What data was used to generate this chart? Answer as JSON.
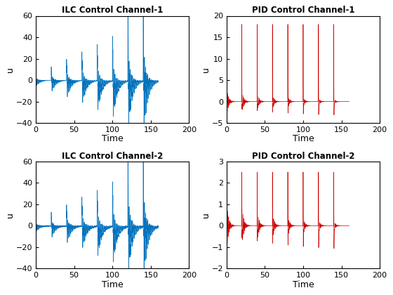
{
  "titles": [
    "ILC Control Channel-1",
    "PID Control Channel-1",
    "ILC Control Channel-2",
    "PID Control Channel-2"
  ],
  "xlabel": "Time",
  "ylabel": "u",
  "ilc_ylim": [
    -40,
    60
  ],
  "pid1_ylim": [
    -5,
    20
  ],
  "pid2_ylim": [
    -2,
    3
  ],
  "xlim": [
    0,
    200
  ],
  "ilc_color": "#0072BD",
  "pid_color": "#cc0000",
  "ilc_yticks": [
    -40,
    -20,
    0,
    20,
    40,
    60
  ],
  "pid1_yticks": [
    -5,
    0,
    5,
    10,
    15,
    20
  ],
  "pid2_yticks": [
    -2,
    -1,
    0,
    1,
    2,
    3
  ],
  "xticks": [
    0,
    50,
    100,
    150,
    200
  ],
  "n_iterations": 8,
  "period": 20,
  "total_time": 160,
  "dt": 0.05,
  "background": "#ffffff",
  "figsize": [
    5.6,
    4.2
  ],
  "dpi": 100
}
